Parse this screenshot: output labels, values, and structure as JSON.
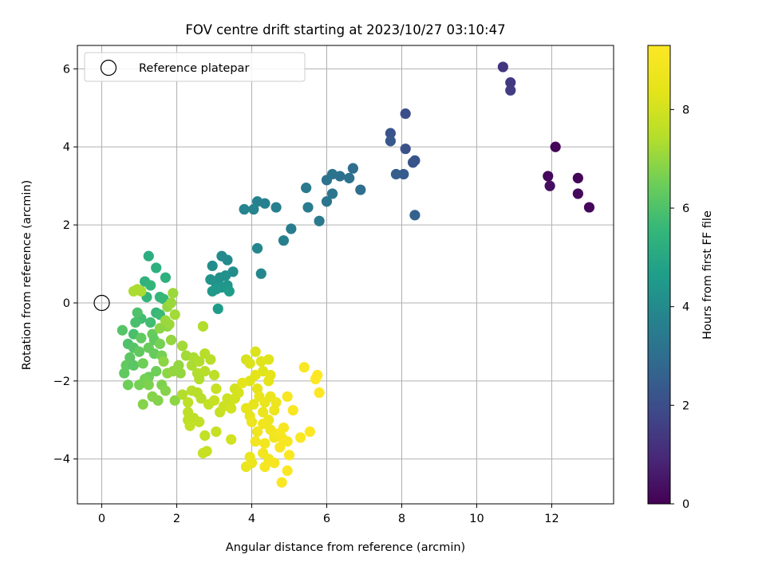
{
  "chart_data": {
    "type": "scatter",
    "title": "FOV centre drift starting at 2023/10/27 03:10:47",
    "xlabel": "Angular distance from reference (arcmin)",
    "ylabel": "Rotation from reference (arcmin)",
    "xlim": [
      -0.65,
      13.65
    ],
    "ylim": [
      -5.15,
      6.6
    ],
    "xticks": [
      0,
      2,
      4,
      6,
      8,
      10,
      12
    ],
    "yticks": [
      -4,
      -2,
      0,
      2,
      4,
      6
    ],
    "grid": true,
    "legend_position": "upper-left",
    "reference": {
      "label": "Reference platepar",
      "x": 0,
      "y": 0
    },
    "colorbar": {
      "label": "Hours from first FF file",
      "colormap": "viridis",
      "range": [
        0,
        9.3
      ],
      "ticks": [
        0,
        2,
        4,
        6,
        8
      ]
    },
    "points": [
      [
        12.1,
        4.0,
        0.1
      ],
      [
        11.9,
        3.25,
        0.2
      ],
      [
        11.95,
        3.0,
        0.3
      ],
      [
        12.7,
        3.2,
        0.1
      ],
      [
        12.7,
        2.8,
        0.2
      ],
      [
        13.0,
        2.45,
        0.15
      ],
      [
        10.7,
        6.05,
        1.3
      ],
      [
        10.9,
        5.65,
        1.4
      ],
      [
        10.9,
        5.45,
        1.5
      ],
      [
        8.1,
        4.85,
        2.0
      ],
      [
        8.1,
        3.95,
        2.1
      ],
      [
        7.7,
        4.35,
        2.2
      ],
      [
        7.7,
        4.15,
        2.3
      ],
      [
        8.3,
        3.6,
        2.1
      ],
      [
        8.35,
        3.65,
        2.2
      ],
      [
        8.05,
        3.3,
        2.4
      ],
      [
        7.85,
        3.3,
        2.5
      ],
      [
        8.35,
        2.25,
        2.6
      ],
      [
        6.7,
        3.45,
        3.0
      ],
      [
        6.9,
        2.9,
        3.0
      ],
      [
        6.6,
        3.2,
        3.1
      ],
      [
        6.35,
        3.25,
        3.1
      ],
      [
        6.15,
        3.3,
        3.2
      ],
      [
        6.0,
        3.15,
        3.2
      ],
      [
        6.15,
        2.8,
        3.3
      ],
      [
        6.0,
        2.6,
        3.3
      ],
      [
        5.8,
        2.1,
        3.4
      ],
      [
        5.45,
        2.95,
        3.4
      ],
      [
        5.5,
        2.45,
        3.5
      ],
      [
        5.05,
        1.9,
        3.5
      ],
      [
        4.85,
        1.6,
        3.6
      ],
      [
        4.65,
        2.45,
        3.6
      ],
      [
        4.35,
        2.55,
        3.7
      ],
      [
        4.15,
        2.6,
        3.7
      ],
      [
        4.05,
        2.4,
        3.8
      ],
      [
        3.8,
        2.4,
        3.8
      ],
      [
        4.15,
        1.4,
        3.9
      ],
      [
        4.25,
        0.75,
        3.9
      ],
      [
        3.35,
        1.1,
        4.0
      ],
      [
        3.2,
        1.2,
        4.0
      ],
      [
        2.95,
        0.95,
        4.1
      ],
      [
        3.5,
        0.8,
        4.1
      ],
      [
        3.3,
        0.7,
        4.2
      ],
      [
        3.15,
        0.65,
        4.2
      ],
      [
        3.05,
        0.5,
        4.3
      ],
      [
        2.9,
        0.6,
        4.3
      ],
      [
        3.35,
        0.45,
        4.4
      ],
      [
        3.2,
        0.4,
        4.4
      ],
      [
        2.95,
        0.3,
        4.5
      ],
      [
        3.05,
        0.35,
        4.5
      ],
      [
        3.4,
        0.3,
        4.6
      ],
      [
        3.1,
        -0.15,
        4.6
      ],
      [
        1.25,
        1.2,
        5.2
      ],
      [
        1.45,
        0.9,
        5.3
      ],
      [
        1.15,
        0.55,
        5.4
      ],
      [
        1.7,
        0.65,
        5.3
      ],
      [
        1.3,
        0.45,
        5.5
      ],
      [
        1.55,
        0.15,
        5.5
      ],
      [
        1.65,
        0.1,
        5.6
      ],
      [
        1.2,
        0.15,
        5.5
      ],
      [
        1.45,
        -0.25,
        5.6
      ],
      [
        1.55,
        -0.3,
        5.7
      ],
      [
        1.3,
        -0.5,
        5.8
      ],
      [
        1.05,
        -0.4,
        5.8
      ],
      [
        0.9,
        -0.5,
        5.9
      ],
      [
        0.95,
        -0.25,
        6.0
      ],
      [
        0.85,
        -0.8,
        5.9
      ],
      [
        0.7,
        -1.05,
        6.0
      ],
      [
        0.55,
        -0.7,
        6.1
      ],
      [
        0.85,
        -1.15,
        6.1
      ],
      [
        0.75,
        -1.4,
        6.2
      ],
      [
        0.65,
        -1.6,
        6.3
      ],
      [
        0.85,
        -1.6,
        6.2
      ],
      [
        0.6,
        -1.8,
        6.3
      ],
      [
        1.0,
        -1.25,
        6.3
      ],
      [
        1.25,
        -1.15,
        6.4
      ],
      [
        1.05,
        -0.9,
        6.3
      ],
      [
        1.35,
        -0.8,
        6.4
      ],
      [
        1.4,
        -0.95,
        6.3
      ],
      [
        1.4,
        -1.3,
        6.4
      ],
      [
        1.1,
        -1.55,
        6.5
      ],
      [
        1.25,
        -1.9,
        6.5
      ],
      [
        1.45,
        -1.75,
        6.5
      ],
      [
        1.6,
        -1.35,
        6.6
      ],
      [
        1.55,
        -1.05,
        6.6
      ],
      [
        1.15,
        -1.95,
        6.6
      ],
      [
        1.0,
        -2.1,
        6.6
      ],
      [
        0.7,
        -2.1,
        6.5
      ],
      [
        1.25,
        -2.1,
        6.7
      ],
      [
        1.6,
        -2.1,
        6.7
      ],
      [
        1.7,
        -2.25,
        6.8
      ],
      [
        1.35,
        -2.4,
        6.8
      ],
      [
        1.5,
        -2.5,
        6.8
      ],
      [
        1.1,
        -2.6,
        6.8
      ],
      [
        1.95,
        -2.5,
        6.9
      ],
      [
        1.75,
        -1.8,
        6.9
      ],
      [
        1.65,
        -1.5,
        6.9
      ],
      [
        1.9,
        -1.75,
        7.0
      ],
      [
        2.05,
        -1.6,
        7.0
      ],
      [
        2.1,
        -1.8,
        7.0
      ],
      [
        1.75,
        -0.6,
        6.9
      ],
      [
        1.55,
        -0.65,
        6.9
      ],
      [
        1.85,
        -0.95,
        7.0
      ],
      [
        1.8,
        -0.55,
        7.1
      ],
      [
        1.75,
        -0.1,
        7.0
      ],
      [
        1.85,
        0.0,
        7.1
      ],
      [
        1.9,
        0.25,
        7.1
      ],
      [
        1.95,
        -0.3,
        7.2
      ],
      [
        1.7,
        -0.45,
        7.1
      ],
      [
        1.05,
        0.3,
        7.3
      ],
      [
        0.85,
        0.3,
        7.3
      ],
      [
        0.95,
        0.35,
        7.3
      ],
      [
        2.15,
        -1.1,
        7.2
      ],
      [
        2.25,
        -1.35,
        7.2
      ],
      [
        2.45,
        -1.4,
        7.3
      ],
      [
        2.4,
        -1.6,
        7.3
      ],
      [
        2.55,
        -1.8,
        7.4
      ],
      [
        2.6,
        -1.95,
        7.4
      ],
      [
        2.6,
        -1.5,
        7.4
      ],
      [
        2.75,
        -1.3,
        7.5
      ],
      [
        2.9,
        -1.45,
        7.5
      ],
      [
        2.75,
        -1.75,
        7.5
      ],
      [
        3.0,
        -1.85,
        7.6
      ],
      [
        2.7,
        -0.6,
        7.4
      ],
      [
        2.15,
        -2.35,
        7.4
      ],
      [
        2.4,
        -2.25,
        7.5
      ],
      [
        2.55,
        -2.3,
        7.5
      ],
      [
        2.65,
        -2.45,
        7.5
      ],
      [
        2.3,
        -2.55,
        7.6
      ],
      [
        2.3,
        -2.8,
        7.6
      ],
      [
        2.3,
        -3.0,
        7.6
      ],
      [
        2.45,
        -2.95,
        7.6
      ],
      [
        2.6,
        -3.05,
        7.7
      ],
      [
        2.35,
        -3.15,
        7.7
      ],
      [
        2.75,
        -3.4,
        7.7
      ],
      [
        3.05,
        -3.3,
        7.8
      ],
      [
        2.7,
        -3.85,
        7.8
      ],
      [
        2.8,
        -3.8,
        7.8
      ],
      [
        2.85,
        -2.6,
        7.7
      ],
      [
        3.0,
        -2.5,
        7.8
      ],
      [
        3.05,
        -2.2,
        7.8
      ],
      [
        3.15,
        -2.8,
        7.8
      ],
      [
        3.35,
        -2.45,
        7.9
      ],
      [
        3.45,
        -2.5,
        7.9
      ],
      [
        3.25,
        -2.65,
        7.9
      ],
      [
        3.45,
        -2.7,
        8.0
      ],
      [
        3.55,
        -2.45,
        8.0
      ],
      [
        3.55,
        -2.2,
        8.0
      ],
      [
        3.45,
        -3.5,
        8.0
      ],
      [
        3.65,
        -2.3,
        8.1
      ],
      [
        3.85,
        -1.45,
        8.1
      ],
      [
        3.95,
        -1.55,
        8.2
      ],
      [
        4.1,
        -1.25,
        8.2
      ],
      [
        4.25,
        -1.5,
        8.3
      ],
      [
        4.45,
        -1.45,
        8.3
      ],
      [
        4.3,
        -1.75,
        8.3
      ],
      [
        4.1,
        -1.85,
        8.4
      ],
      [
        3.95,
        -2.0,
        8.3
      ],
      [
        3.75,
        -2.05,
        8.4
      ],
      [
        4.15,
        -2.2,
        8.4
      ],
      [
        4.45,
        -2.0,
        8.4
      ],
      [
        4.5,
        -1.85,
        8.5
      ],
      [
        3.85,
        -2.7,
        8.5
      ],
      [
        3.95,
        -2.9,
        8.5
      ],
      [
        4.05,
        -2.6,
        8.5
      ],
      [
        4.2,
        -2.4,
        8.6
      ],
      [
        4.35,
        -2.55,
        8.6
      ],
      [
        4.5,
        -2.4,
        8.6
      ],
      [
        4.3,
        -2.8,
        8.6
      ],
      [
        4.45,
        -3.0,
        8.7
      ],
      [
        4.6,
        -2.75,
        8.7
      ],
      [
        4.65,
        -2.55,
        8.7
      ],
      [
        4.0,
        -3.05,
        8.7
      ],
      [
        4.15,
        -3.3,
        8.8
      ],
      [
        4.3,
        -3.1,
        8.8
      ],
      [
        4.5,
        -3.25,
        8.8
      ],
      [
        4.6,
        -3.45,
        8.8
      ],
      [
        4.35,
        -3.6,
        8.9
      ],
      [
        4.1,
        -3.55,
        8.9
      ],
      [
        4.3,
        -3.85,
        8.9
      ],
      [
        4.45,
        -4.0,
        8.9
      ],
      [
        4.35,
        -4.2,
        9.0
      ],
      [
        4.6,
        -4.1,
        9.0
      ],
      [
        3.85,
        -4.2,
        8.6
      ],
      [
        4.0,
        -4.1,
        8.7
      ],
      [
        3.95,
        -3.95,
        8.6
      ],
      [
        4.7,
        -3.35,
        9.0
      ],
      [
        4.8,
        -3.45,
        9.0
      ],
      [
        4.95,
        -3.55,
        9.1
      ],
      [
        4.85,
        -3.2,
        9.1
      ],
      [
        4.95,
        -2.4,
        9.1
      ],
      [
        5.1,
        -2.75,
        9.1
      ],
      [
        4.75,
        -3.7,
        9.1
      ],
      [
        5.0,
        -3.9,
        9.2
      ],
      [
        4.95,
        -4.3,
        9.2
      ],
      [
        4.8,
        -4.6,
        9.2
      ],
      [
        5.3,
        -3.45,
        9.2
      ],
      [
        5.4,
        -1.65,
        9.2
      ],
      [
        5.55,
        -3.3,
        9.3
      ],
      [
        5.75,
        -1.85,
        9.3
      ],
      [
        5.7,
        -1.95,
        9.3
      ],
      [
        5.8,
        -2.3,
        9.3
      ]
    ]
  }
}
